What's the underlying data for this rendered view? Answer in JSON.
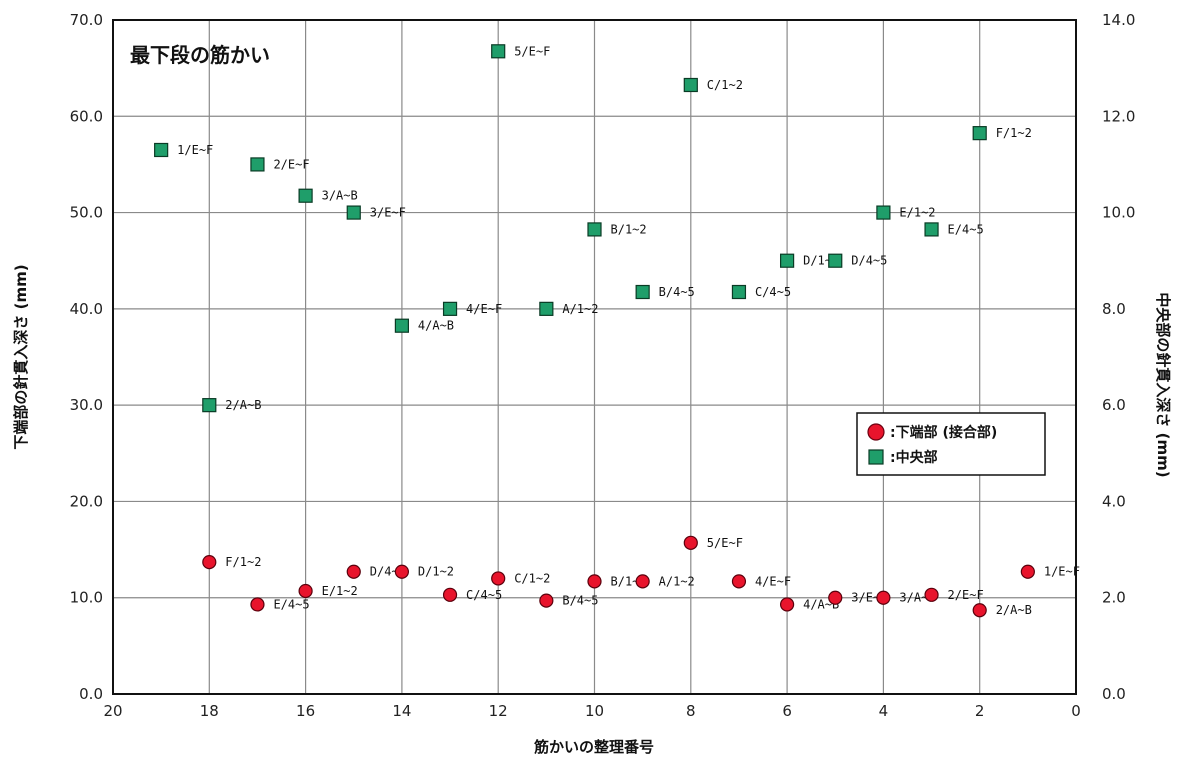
{
  "chart_data": {
    "type": "scatter",
    "title": "最下段の筋かい",
    "xlabel": "筋かいの整理番号",
    "ylabel_left": "下端部の針貫入深さ (mm)",
    "ylabel_right": "中央部の針貫入深さ (mm)",
    "xlim": [
      20,
      0
    ],
    "x_reversed": true,
    "ylim_left": [
      0,
      70
    ],
    "ylim_right": [
      0,
      14
    ],
    "x_ticks": [
      "20",
      "18",
      "16",
      "14",
      "12",
      "10",
      "8",
      "6",
      "4",
      "2",
      "0"
    ],
    "y_ticks_left": [
      "0.0",
      "10.0",
      "20.0",
      "30.0",
      "40.0",
      "50.0",
      "60.0",
      "70.0"
    ],
    "y_ticks_right": [
      "0.0",
      "2.0",
      "4.0",
      "6.0",
      "8.0",
      "10.0",
      "12.0",
      "14.0"
    ],
    "grid": true,
    "legend_position": "right-middle",
    "series": [
      {
        "name": ":下端部 (接合部)",
        "axis": "left",
        "marker": "circle",
        "color": "#e8142c",
        "points": [
          {
            "x": 18,
            "y": 13.7,
            "label": "F/1~2"
          },
          {
            "x": 17,
            "y": 9.3,
            "label": "E/4~5"
          },
          {
            "x": 16,
            "y": 10.7,
            "label": "E/1~2"
          },
          {
            "x": 15,
            "y": 12.7,
            "label": "D/4~5"
          },
          {
            "x": 14,
            "y": 12.7,
            "label": "D/1~2"
          },
          {
            "x": 13,
            "y": 10.3,
            "label": "C/4~5"
          },
          {
            "x": 12,
            "y": 12.0,
            "label": "C/1~2"
          },
          {
            "x": 11,
            "y": 9.7,
            "label": "B/4~5"
          },
          {
            "x": 10,
            "y": 11.7,
            "label": "B/1~2"
          },
          {
            "x": 9,
            "y": 11.7,
            "label": "A/1~2"
          },
          {
            "x": 8,
            "y": 15.7,
            "label": "5/E~F"
          },
          {
            "x": 7,
            "y": 11.7,
            "label": "4/E~F"
          },
          {
            "x": 6,
            "y": 9.3,
            "label": "4/A~B"
          },
          {
            "x": 5,
            "y": 10.0,
            "label": "3/E~F"
          },
          {
            "x": 4,
            "y": 10.0,
            "label": "3/A~B"
          },
          {
            "x": 3,
            "y": 10.3,
            "label": "2/E~F"
          },
          {
            "x": 2,
            "y": 8.7,
            "label": "2/A~B"
          },
          {
            "x": 1,
            "y": 12.7,
            "label": "1/E~F"
          }
        ]
      },
      {
        "name": ":中央部",
        "axis": "right",
        "marker": "square",
        "color": "#1f9e6a",
        "points": [
          {
            "x": 19,
            "y": 11.3,
            "label": "1/E~F"
          },
          {
            "x": 18,
            "y": 6.0,
            "label": "2/A~B"
          },
          {
            "x": 17,
            "y": 11.0,
            "label": "2/E~F"
          },
          {
            "x": 16,
            "y": 10.35,
            "label": "3/A~B"
          },
          {
            "x": 15,
            "y": 10.0,
            "label": "3/E~F"
          },
          {
            "x": 14,
            "y": 7.65,
            "label": "4/A~B"
          },
          {
            "x": 13,
            "y": 8.0,
            "label": "4/E~F"
          },
          {
            "x": 12,
            "y": 13.35,
            "label": "5/E~F"
          },
          {
            "x": 11,
            "y": 8.0,
            "label": "A/1~2"
          },
          {
            "x": 10,
            "y": 9.65,
            "label": "B/1~2"
          },
          {
            "x": 9,
            "y": 8.35,
            "label": "B/4~5"
          },
          {
            "x": 8,
            "y": 12.65,
            "label": "C/1~2"
          },
          {
            "x": 7,
            "y": 8.35,
            "label": "C/4~5"
          },
          {
            "x": 6,
            "y": 9.0,
            "label": "D/1~2"
          },
          {
            "x": 5,
            "y": 9.0,
            "label": "D/4~5"
          },
          {
            "x": 4,
            "y": 10.0,
            "label": "E/1~2"
          },
          {
            "x": 3,
            "y": 9.65,
            "label": "E/4~5"
          },
          {
            "x": 2,
            "y": 11.65,
            "label": "F/1~2"
          }
        ]
      }
    ]
  }
}
